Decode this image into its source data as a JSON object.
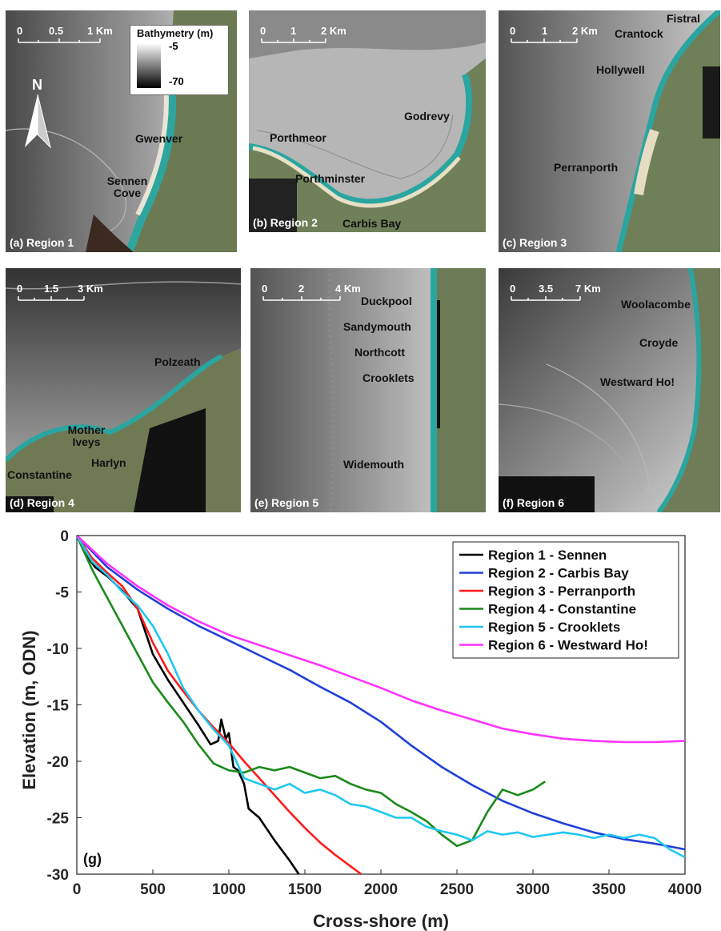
{
  "maps": [
    {
      "id": "a",
      "label": "(a) Region 1",
      "scale": {
        "ticks": [
          "0",
          "0.5",
          "1 Km"
        ]
      },
      "places": [
        "Gwenver",
        "Sennen Cove"
      ],
      "legend": {
        "title": "Bathymetry (m)",
        "high": "-5",
        "low": "-70"
      },
      "north": "N"
    },
    {
      "id": "b",
      "label": "(b) Region 2",
      "scale": {
        "ticks": [
          "0",
          "1",
          "2 Km"
        ]
      },
      "places": [
        "Godrevy",
        "Porthmeor",
        "Porthminster",
        "Carbis Bay"
      ]
    },
    {
      "id": "c",
      "label": "(c) Region 3",
      "scale": {
        "ticks": [
          "0",
          "1",
          "2 Km"
        ]
      },
      "places": [
        "Fistral",
        "Crantock",
        "Hollywell",
        "Perranporth"
      ]
    },
    {
      "id": "d",
      "label": "(d) Region 4",
      "scale": {
        "ticks": [
          "0",
          "1.5",
          "3 Km"
        ]
      },
      "places": [
        "Polzeath",
        "Mother Iveys",
        "Harlyn",
        "Constantine"
      ]
    },
    {
      "id": "e",
      "label": "(e) Region 5",
      "scale": {
        "ticks": [
          "0",
          "2",
          "4 Km"
        ]
      },
      "places": [
        "Duckpool",
        "Sandymouth",
        "Northcott",
        "Crooklets",
        "Widemouth"
      ]
    },
    {
      "id": "f",
      "label": "(f) Region 6",
      "scale": {
        "ticks": [
          "0",
          "3.5",
          "7 Km"
        ]
      },
      "places": [
        "Woolacombe",
        "Croyde",
        "Westward Ho!"
      ]
    }
  ],
  "chart_data": {
    "type": "line",
    "panel_label": "(g)",
    "xlabel": "Cross-shore (m)",
    "ylabel": "Elevation (m, ODN)",
    "xlim": [
      0,
      4000
    ],
    "ylim": [
      -30,
      0
    ],
    "xticks": [
      0,
      500,
      1000,
      1500,
      2000,
      2500,
      3000,
      3500,
      4000
    ],
    "yticks": [
      0,
      -5,
      -10,
      -15,
      -20,
      -25,
      -30
    ],
    "grid": false,
    "legend_position": "top-right",
    "series": [
      {
        "name": "Region 1 - Sennen",
        "color": "#000000",
        "points": [
          [
            0,
            0
          ],
          [
            50,
            -1.5
          ],
          [
            120,
            -2.8
          ],
          [
            200,
            -3.6
          ],
          [
            300,
            -4.9
          ],
          [
            400,
            -6.5
          ],
          [
            450,
            -8.5
          ],
          [
            500,
            -10.5
          ],
          [
            600,
            -12.8
          ],
          [
            700,
            -14.8
          ],
          [
            800,
            -16.8
          ],
          [
            880,
            -18.5
          ],
          [
            930,
            -18.2
          ],
          [
            950,
            -16.3
          ],
          [
            980,
            -18.0
          ],
          [
            1000,
            -17.5
          ],
          [
            1030,
            -20.5
          ],
          [
            1060,
            -20.8
          ],
          [
            1100,
            -22.0
          ],
          [
            1130,
            -24.2
          ],
          [
            1200,
            -25.0
          ],
          [
            1300,
            -27.0
          ],
          [
            1400,
            -28.8
          ],
          [
            1460,
            -30
          ]
        ]
      },
      {
        "name": "Region 2 - Carbis Bay",
        "color": "#1f3fd8",
        "points": [
          [
            0,
            0
          ],
          [
            200,
            -2.8
          ],
          [
            400,
            -4.8
          ],
          [
            600,
            -6.5
          ],
          [
            800,
            -8.0
          ],
          [
            1000,
            -9.3
          ],
          [
            1200,
            -10.6
          ],
          [
            1400,
            -11.9
          ],
          [
            1600,
            -13.4
          ],
          [
            1800,
            -14.8
          ],
          [
            2000,
            -16.5
          ],
          [
            2200,
            -18.6
          ],
          [
            2400,
            -20.5
          ],
          [
            2600,
            -22.1
          ],
          [
            2800,
            -23.5
          ],
          [
            3000,
            -24.6
          ],
          [
            3200,
            -25.5
          ],
          [
            3400,
            -26.3
          ],
          [
            3600,
            -26.9
          ],
          [
            3800,
            -27.3
          ],
          [
            4000,
            -27.8
          ]
        ]
      },
      {
        "name": "Region 3 - Perranporth",
        "color": "#ff1a1a",
        "points": [
          [
            0,
            0
          ],
          [
            100,
            -2.0
          ],
          [
            200,
            -3.3
          ],
          [
            300,
            -4.5
          ],
          [
            400,
            -6.5
          ],
          [
            500,
            -9.5
          ],
          [
            600,
            -12.0
          ],
          [
            700,
            -13.8
          ],
          [
            800,
            -15.5
          ],
          [
            900,
            -17.0
          ],
          [
            1000,
            -18.4
          ],
          [
            1100,
            -20.0
          ],
          [
            1200,
            -21.5
          ],
          [
            1300,
            -23.0
          ],
          [
            1400,
            -24.5
          ],
          [
            1500,
            -25.9
          ],
          [
            1600,
            -27.2
          ],
          [
            1700,
            -28.3
          ],
          [
            1800,
            -29.3
          ],
          [
            1870,
            -30
          ]
        ]
      },
      {
        "name": "Region 4 - Constantine",
        "color": "#1a8a1a",
        "points": [
          [
            0,
            0
          ],
          [
            100,
            -3.0
          ],
          [
            200,
            -5.5
          ],
          [
            300,
            -8.0
          ],
          [
            400,
            -10.5
          ],
          [
            500,
            -13.0
          ],
          [
            600,
            -14.8
          ],
          [
            700,
            -16.5
          ],
          [
            800,
            -18.5
          ],
          [
            900,
            -20.2
          ],
          [
            1000,
            -20.8
          ],
          [
            1100,
            -21.0
          ],
          [
            1200,
            -20.5
          ],
          [
            1300,
            -20.8
          ],
          [
            1400,
            -20.5
          ],
          [
            1500,
            -21.0
          ],
          [
            1600,
            -21.5
          ],
          [
            1700,
            -21.3
          ],
          [
            1800,
            -22.0
          ],
          [
            1900,
            -22.5
          ],
          [
            2000,
            -22.8
          ],
          [
            2100,
            -23.8
          ],
          [
            2200,
            -24.5
          ],
          [
            2300,
            -25.3
          ],
          [
            2400,
            -26.5
          ],
          [
            2500,
            -27.5
          ],
          [
            2600,
            -27.0
          ],
          [
            2700,
            -24.5
          ],
          [
            2800,
            -22.5
          ],
          [
            2900,
            -23.0
          ],
          [
            3000,
            -22.5
          ],
          [
            3080,
            -21.8
          ]
        ]
      },
      {
        "name": "Region 5 - Crooklets",
        "color": "#1ec8f0",
        "points": [
          [
            0,
            0
          ],
          [
            100,
            -2.3
          ],
          [
            200,
            -3.5
          ],
          [
            300,
            -5.0
          ],
          [
            400,
            -6.2
          ],
          [
            500,
            -8.0
          ],
          [
            600,
            -10.5
          ],
          [
            700,
            -13.5
          ],
          [
            800,
            -15.5
          ],
          [
            900,
            -17.2
          ],
          [
            1000,
            -18.6
          ],
          [
            1100,
            -21.5
          ],
          [
            1200,
            -22.0
          ],
          [
            1300,
            -22.5
          ],
          [
            1400,
            -22.0
          ],
          [
            1500,
            -22.8
          ],
          [
            1600,
            -22.5
          ],
          [
            1700,
            -23.0
          ],
          [
            1800,
            -23.8
          ],
          [
            1900,
            -24.0
          ],
          [
            2000,
            -24.5
          ],
          [
            2100,
            -25.0
          ],
          [
            2200,
            -25.0
          ],
          [
            2300,
            -25.8
          ],
          [
            2400,
            -26.2
          ],
          [
            2500,
            -26.5
          ],
          [
            2600,
            -27.0
          ],
          [
            2700,
            -26.2
          ],
          [
            2800,
            -26.5
          ],
          [
            2900,
            -26.3
          ],
          [
            3000,
            -26.7
          ],
          [
            3100,
            -26.5
          ],
          [
            3200,
            -26.3
          ],
          [
            3300,
            -26.5
          ],
          [
            3400,
            -26.8
          ],
          [
            3500,
            -26.5
          ],
          [
            3600,
            -26.8
          ],
          [
            3700,
            -26.5
          ],
          [
            3800,
            -26.8
          ],
          [
            3900,
            -27.8
          ],
          [
            4000,
            -28.5
          ]
        ]
      },
      {
        "name": "Region 6 - Westward Ho!",
        "color": "#ff33ff",
        "points": [
          [
            0,
            0
          ],
          [
            200,
            -2.5
          ],
          [
            400,
            -4.5
          ],
          [
            600,
            -6.2
          ],
          [
            800,
            -7.6
          ],
          [
            1000,
            -8.8
          ],
          [
            1200,
            -9.7
          ],
          [
            1400,
            -10.6
          ],
          [
            1600,
            -11.5
          ],
          [
            1800,
            -12.5
          ],
          [
            2000,
            -13.5
          ],
          [
            2200,
            -14.6
          ],
          [
            2400,
            -15.5
          ],
          [
            2600,
            -16.3
          ],
          [
            2800,
            -17.1
          ],
          [
            3000,
            -17.6
          ],
          [
            3200,
            -18.0
          ],
          [
            3400,
            -18.2
          ],
          [
            3600,
            -18.3
          ],
          [
            3800,
            -18.3
          ],
          [
            4000,
            -18.2
          ]
        ]
      }
    ]
  }
}
